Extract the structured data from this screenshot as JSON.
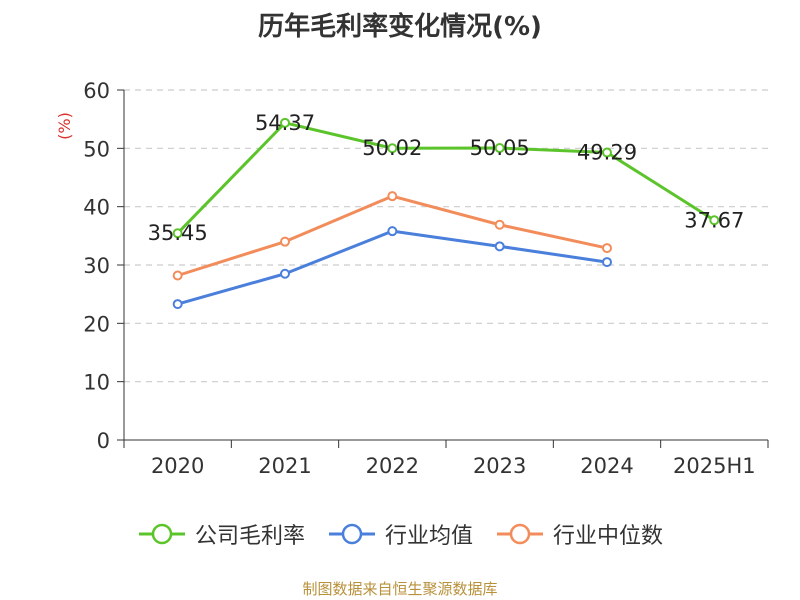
{
  "title": "历年毛利率变化情况(%)",
  "source": "制图数据来自恒生聚源数据库",
  "chart_data": {
    "type": "line",
    "title": "历年毛利率变化情况(%)",
    "ylabel": "(%)",
    "ylim": [
      0,
      60
    ],
    "yticks": [
      0,
      10,
      20,
      30,
      40,
      50,
      60
    ],
    "grid": true,
    "legend_position": "bottom",
    "categories": [
      "2020",
      "2021",
      "2022",
      "2023",
      "2024",
      "2025H1"
    ],
    "series": [
      {
        "name": "公司毛利率",
        "color": "#5cc42b",
        "values": [
          35.45,
          54.37,
          50.02,
          50.05,
          49.29,
          37.67
        ],
        "labels": [
          "35.45",
          "54.37",
          "50.02",
          "50.05",
          "49.29",
          "37.67"
        ]
      },
      {
        "name": "行业均值",
        "color": "#4a7fdb",
        "values": [
          23.3,
          28.5,
          35.8,
          33.2,
          30.5,
          null
        ]
      },
      {
        "name": "行业中位数",
        "color": "#f28c5a",
        "values": [
          28.2,
          34.0,
          41.8,
          36.9,
          32.9,
          null
        ]
      }
    ]
  }
}
